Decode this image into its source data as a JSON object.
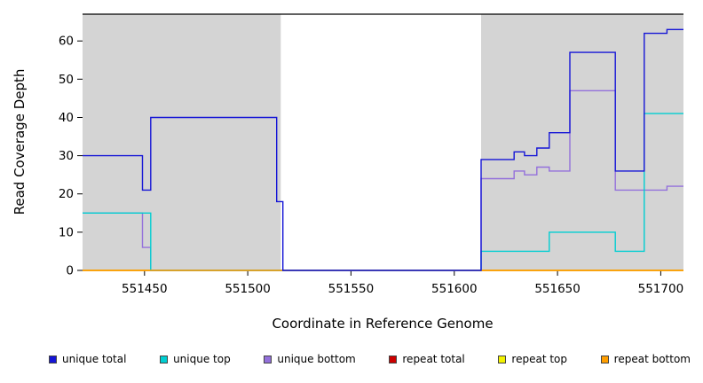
{
  "figure": {
    "background": "#ffffff",
    "panel_color": "#d4d4d4"
  },
  "chart_data": {
    "type": "line",
    "title": "",
    "xlabel": "Coordinate in Reference Genome",
    "ylabel": "Read Coverage Depth",
    "xlim": [
      551420,
      551711
    ],
    "ylim": [
      0,
      67
    ],
    "x_ticks": [
      551450,
      551500,
      551550,
      551600,
      551650,
      551700
    ],
    "y_ticks": [
      0,
      10,
      20,
      30,
      40,
      50,
      60
    ],
    "grid": false,
    "legend_position": "bottom",
    "top_border": true,
    "shaded_regions": [
      [
        551420,
        551516
      ],
      [
        551613,
        551711
      ]
    ],
    "series": [
      {
        "name": "unique total",
        "color": "#1515d6",
        "points": [
          [
            551420,
            30
          ],
          [
            551449,
            30
          ],
          [
            551449,
            21
          ],
          [
            551453,
            21
          ],
          [
            551453,
            40
          ],
          [
            551514,
            40
          ],
          [
            551514,
            18
          ],
          [
            551517,
            18
          ],
          [
            551517,
            0
          ],
          [
            551613,
            0
          ],
          [
            551613,
            29
          ],
          [
            551629,
            29
          ],
          [
            551629,
            31
          ],
          [
            551634,
            31
          ],
          [
            551634,
            30
          ],
          [
            551640,
            30
          ],
          [
            551640,
            32
          ],
          [
            551646,
            32
          ],
          [
            551646,
            36
          ],
          [
            551656,
            36
          ],
          [
            551656,
            57
          ],
          [
            551678,
            57
          ],
          [
            551678,
            26
          ],
          [
            551692,
            26
          ],
          [
            551692,
            62
          ],
          [
            551703,
            62
          ],
          [
            551703,
            63
          ],
          [
            551711,
            63
          ]
        ]
      },
      {
        "name": "unique top",
        "color": "#00ced1",
        "points": [
          [
            551420,
            15
          ],
          [
            551453,
            15
          ],
          [
            551453,
            0
          ],
          [
            551613,
            0
          ],
          [
            551613,
            5
          ],
          [
            551646,
            5
          ],
          [
            551646,
            10
          ],
          [
            551678,
            10
          ],
          [
            551678,
            5
          ],
          [
            551692,
            5
          ],
          [
            551692,
            41
          ],
          [
            551711,
            41
          ]
        ]
      },
      {
        "name": "unique bottom",
        "color": "#9370db",
        "points": [
          [
            551420,
            15
          ],
          [
            551449,
            15
          ],
          [
            551449,
            6
          ],
          [
            551453,
            6
          ],
          [
            551453,
            0
          ],
          [
            551613,
            0
          ],
          [
            551613,
            24
          ],
          [
            551629,
            24
          ],
          [
            551629,
            26
          ],
          [
            551634,
            26
          ],
          [
            551634,
            25
          ],
          [
            551640,
            25
          ],
          [
            551640,
            27
          ],
          [
            551646,
            27
          ],
          [
            551646,
            26
          ],
          [
            551656,
            26
          ],
          [
            551656,
            47
          ],
          [
            551678,
            47
          ],
          [
            551678,
            21
          ],
          [
            551703,
            21
          ],
          [
            551703,
            22
          ],
          [
            551711,
            22
          ]
        ]
      },
      {
        "name": "repeat total",
        "color": "#cc0000",
        "points": [
          [
            551420,
            0
          ],
          [
            551711,
            0
          ]
        ]
      },
      {
        "name": "repeat top",
        "color": "#f2f200",
        "points": [
          [
            551420,
            0
          ],
          [
            551711,
            0
          ]
        ]
      },
      {
        "name": "repeat bottom",
        "color": "#ff9e00",
        "points": [
          [
            551420,
            0
          ],
          [
            551711,
            0
          ]
        ]
      }
    ],
    "draw_order": [
      "repeat total",
      "repeat top",
      "unique bottom",
      "unique top",
      "repeat bottom",
      "unique total"
    ]
  }
}
